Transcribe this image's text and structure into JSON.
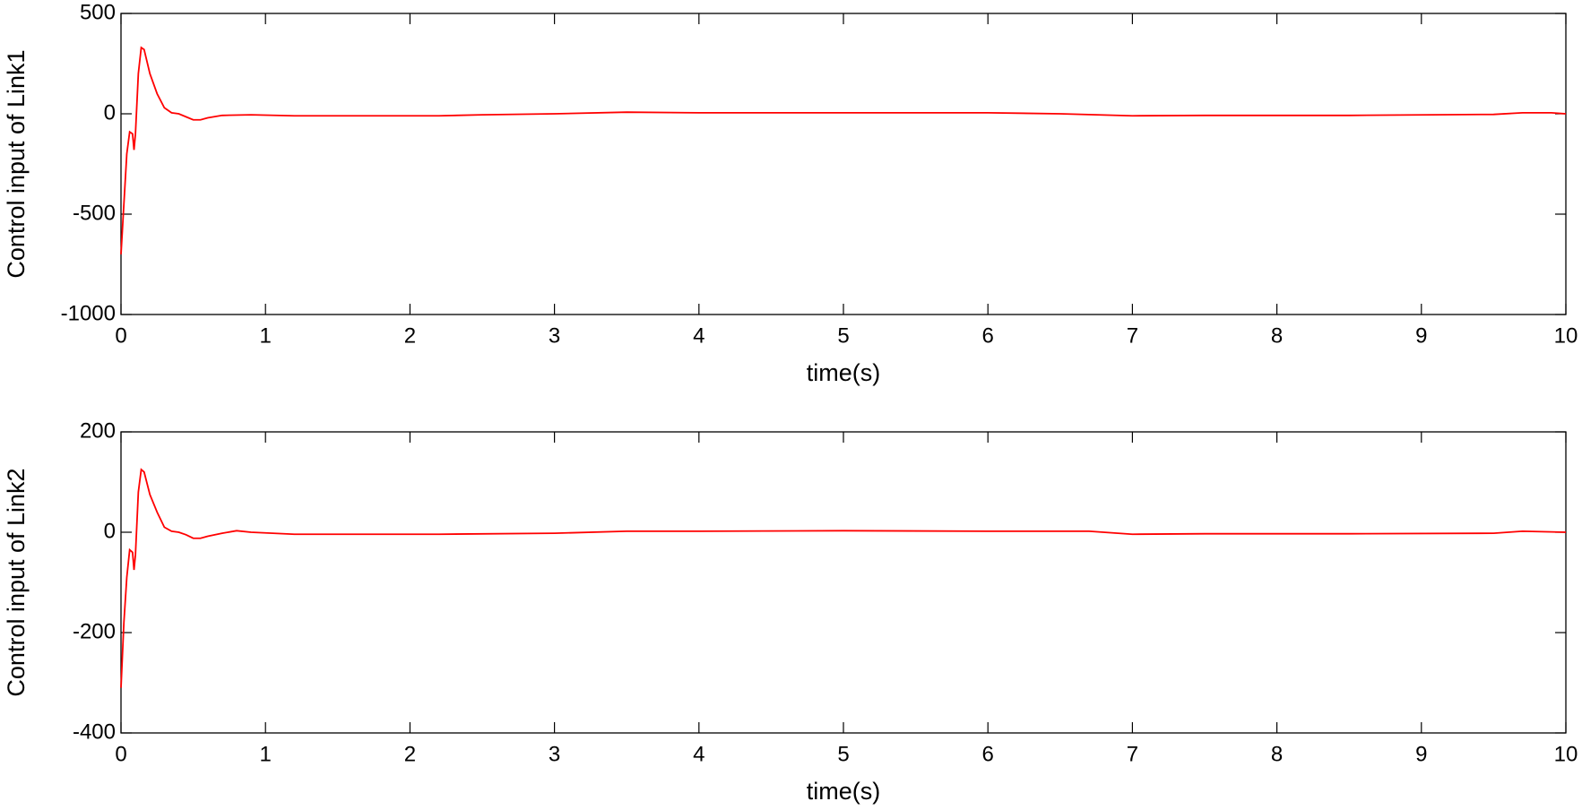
{
  "chart_data": [
    {
      "type": "line",
      "x_label": "time(s)",
      "y_label": "Control input of Link1",
      "x": [
        0,
        0.02,
        0.04,
        0.06,
        0.08,
        0.09,
        0.1,
        0.12,
        0.14,
        0.16,
        0.2,
        0.25,
        0.3,
        0.35,
        0.4,
        0.45,
        0.5,
        0.55,
        0.6,
        0.7,
        0.9,
        1.2,
        2.2,
        2.5,
        3,
        3.5,
        4,
        5,
        6,
        6.5,
        7,
        7.5,
        8.5,
        9.5,
        9.7,
        9.9,
        10
      ],
      "series": [
        {
          "color": "#ff0000",
          "values": [
            -700,
            -450,
            -200,
            -90,
            -100,
            -180,
            -100,
            200,
            330,
            320,
            200,
            100,
            30,
            5,
            0,
            -15,
            -30,
            -30,
            -20,
            -8,
            -5,
            -10,
            -10,
            -5,
            0,
            8,
            5,
            5,
            5,
            0,
            -10,
            -8,
            -8,
            -3,
            5,
            5,
            0
          ]
        }
      ],
      "xlim": [
        0,
        10
      ],
      "xticks": [
        0,
        1,
        2,
        3,
        4,
        5,
        6,
        7,
        8,
        9,
        10
      ],
      "ylim": [
        -1000,
        500
      ],
      "yticks": [
        -1000,
        -500,
        0,
        500
      ],
      "grid": false
    },
    {
      "type": "line",
      "x_label": "time(s)",
      "y_label": "Control input of Link2",
      "x": [
        0,
        0.02,
        0.04,
        0.06,
        0.08,
        0.09,
        0.1,
        0.12,
        0.14,
        0.16,
        0.2,
        0.25,
        0.3,
        0.35,
        0.4,
        0.45,
        0.5,
        0.55,
        0.6,
        0.7,
        0.8,
        0.9,
        1.2,
        2.2,
        3,
        3.5,
        4,
        5,
        6,
        6.7,
        7,
        7.5,
        8.5,
        9.5,
        9.7,
        10
      ],
      "series": [
        {
          "color": "#ff0000",
          "values": [
            -310,
            -180,
            -90,
            -35,
            -40,
            -75,
            -45,
            80,
            125,
            120,
            75,
            40,
            10,
            2,
            0,
            -5,
            -12,
            -12,
            -8,
            -2,
            3,
            0,
            -4,
            -4,
            -2,
            2,
            2,
            3,
            2,
            2,
            -4,
            -3,
            -3,
            -2,
            2,
            0
          ]
        }
      ],
      "xlim": [
        0,
        10
      ],
      "xticks": [
        0,
        1,
        2,
        3,
        4,
        5,
        6,
        7,
        8,
        9,
        10
      ],
      "ylim": [
        -400,
        200
      ],
      "yticks": [
        -400,
        -200,
        0,
        200
      ],
      "grid": false
    }
  ]
}
